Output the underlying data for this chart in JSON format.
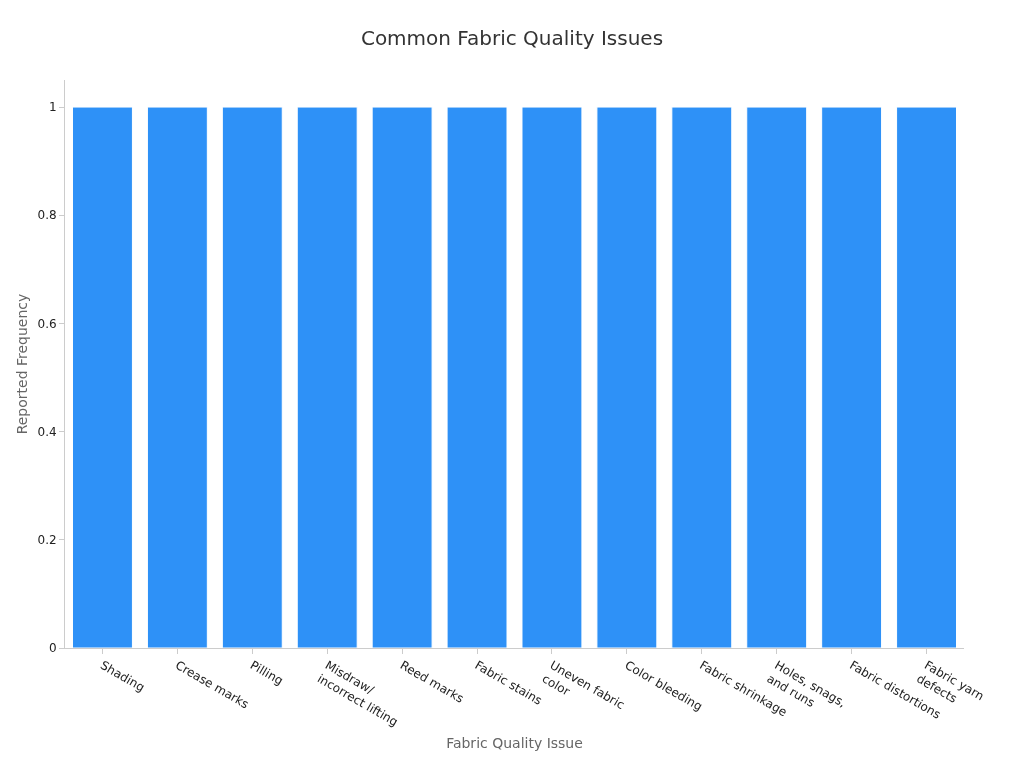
{
  "chart_data": {
    "type": "bar",
    "title": "Common Fabric Quality Issues",
    "xlabel": "Fabric Quality Issue",
    "ylabel": "Reported Frequency",
    "categories": [
      "Shading",
      "Crease marks",
      "Pilling",
      "Misdraw/\nincorrect lifting",
      "Reed marks",
      "Fabric stains",
      "Uneven fabric\ncolor",
      "Color bleeding",
      "Fabric shrinkage",
      "Holes, snags,\nand runs",
      "Fabric distortions",
      "Fabric yarn\ndefects"
    ],
    "values": [
      1,
      1,
      1,
      1,
      1,
      1,
      1,
      1,
      1,
      1,
      1,
      1
    ],
    "color": "#2e91f7",
    "ylim": [
      0,
      1.05
    ],
    "yticks": [
      0,
      0.2,
      0.4,
      0.6,
      0.8,
      1
    ],
    "grid": false,
    "legend": false
  }
}
